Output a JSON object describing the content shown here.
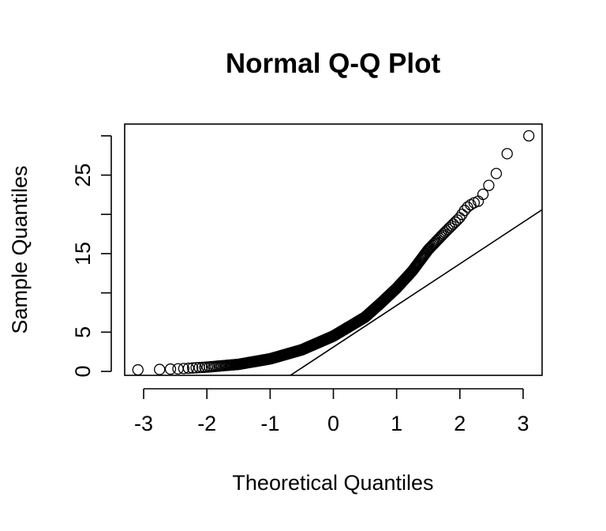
{
  "chart_data": {
    "type": "scatter",
    "title": "Normal Q-Q Plot",
    "xlabel": "Theoretical Quantiles",
    "ylabel": "Sample Quantiles",
    "xlim": [
      -3.3,
      3.3
    ],
    "ylim": [
      -0.5,
      31.5
    ],
    "x_ticks": [
      -3,
      -2,
      -1,
      0,
      1,
      2,
      3
    ],
    "x_tick_labels": [
      "-3",
      "-2",
      "-1",
      "0",
      "1",
      "2",
      "3"
    ],
    "y_ticks": [
      0,
      5,
      10,
      15,
      20,
      25,
      30
    ],
    "y_tick_labels": [
      "0",
      "5",
      "",
      "15",
      "",
      "25",
      ""
    ],
    "reference_line": {
      "slope": 5.3,
      "intercept": 3.1
    },
    "point_count": 500,
    "anchor_points": [
      [
        -3.06,
        0.2
      ],
      [
        -2.73,
        0.25
      ],
      [
        -2.4,
        0.35
      ],
      [
        -2.0,
        0.55
      ],
      [
        -1.5,
        0.9
      ],
      [
        -1.0,
        1.6
      ],
      [
        -0.5,
        2.75
      ],
      [
        0.0,
        4.5
      ],
      [
        0.5,
        6.9
      ],
      [
        0.75,
        8.7
      ],
      [
        1.0,
        10.6
      ],
      [
        1.25,
        12.8
      ],
      [
        1.5,
        15.5
      ],
      [
        1.75,
        17.6
      ],
      [
        2.0,
        19.6
      ],
      [
        2.1,
        20.8
      ],
      [
        2.2,
        21.4
      ],
      [
        2.3,
        21.7
      ],
      [
        2.4,
        23.0
      ],
      [
        2.55,
        24.8
      ],
      [
        2.73,
        27.6
      ],
      [
        3.06,
        30.0
      ]
    ],
    "grid": false,
    "legend": "none"
  }
}
